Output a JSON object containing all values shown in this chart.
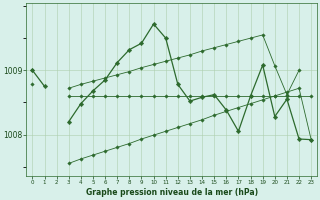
{
  "hours": [
    0,
    1,
    2,
    3,
    4,
    5,
    6,
    7,
    8,
    9,
    10,
    11,
    12,
    13,
    14,
    15,
    16,
    17,
    18,
    19,
    20,
    21,
    22,
    23
  ],
  "pressure_main": [
    1009.0,
    1008.75,
    null,
    1008.2,
    1008.48,
    1008.68,
    1008.85,
    1009.12,
    1009.32,
    1009.42,
    1009.72,
    1009.5,
    1008.78,
    1008.52,
    1008.58,
    1008.62,
    1008.38,
    1008.05,
    1008.6,
    1009.08,
    1008.28,
    1008.55,
    1007.93,
    1007.92
  ],
  "pressure_max": [
    1009.0,
    null,
    null,
    1008.72,
    1008.78,
    1008.83,
    1008.88,
    1008.93,
    1008.98,
    1009.04,
    1009.09,
    1009.14,
    1009.19,
    1009.24,
    1009.3,
    1009.35,
    1009.4,
    1009.45,
    1009.5,
    1009.55,
    1009.07,
    1008.62,
    1009.0,
    null
  ],
  "pressure_min": [
    null,
    null,
    null,
    1007.55,
    1007.62,
    1007.68,
    1007.74,
    1007.8,
    1007.86,
    1007.93,
    1007.99,
    1008.05,
    1008.11,
    1008.17,
    1008.23,
    1008.3,
    1008.36,
    1008.42,
    1008.48,
    1008.54,
    1008.6,
    1008.66,
    1008.72,
    1007.92
  ],
  "pressure_mean": [
    1008.78,
    null,
    null,
    1008.6,
    1008.6,
    1008.6,
    1008.6,
    1008.6,
    1008.6,
    1008.6,
    1008.6,
    1008.6,
    1008.6,
    1008.6,
    1008.6,
    1008.6,
    1008.6,
    1008.6,
    1008.6,
    1008.6,
    1008.6,
    1008.6,
    1008.6,
    1008.6
  ],
  "ylim": [
    1007.35,
    1010.05
  ],
  "yticks": [
    1008.0,
    1009.0
  ],
  "xlabel": "Graphe pression niveau de la mer (hPa)",
  "line_color": "#2d6a2d",
  "bg_color": "#d8f0ea",
  "grid_color": "#aecfae",
  "text_color": "#1a4a1a"
}
